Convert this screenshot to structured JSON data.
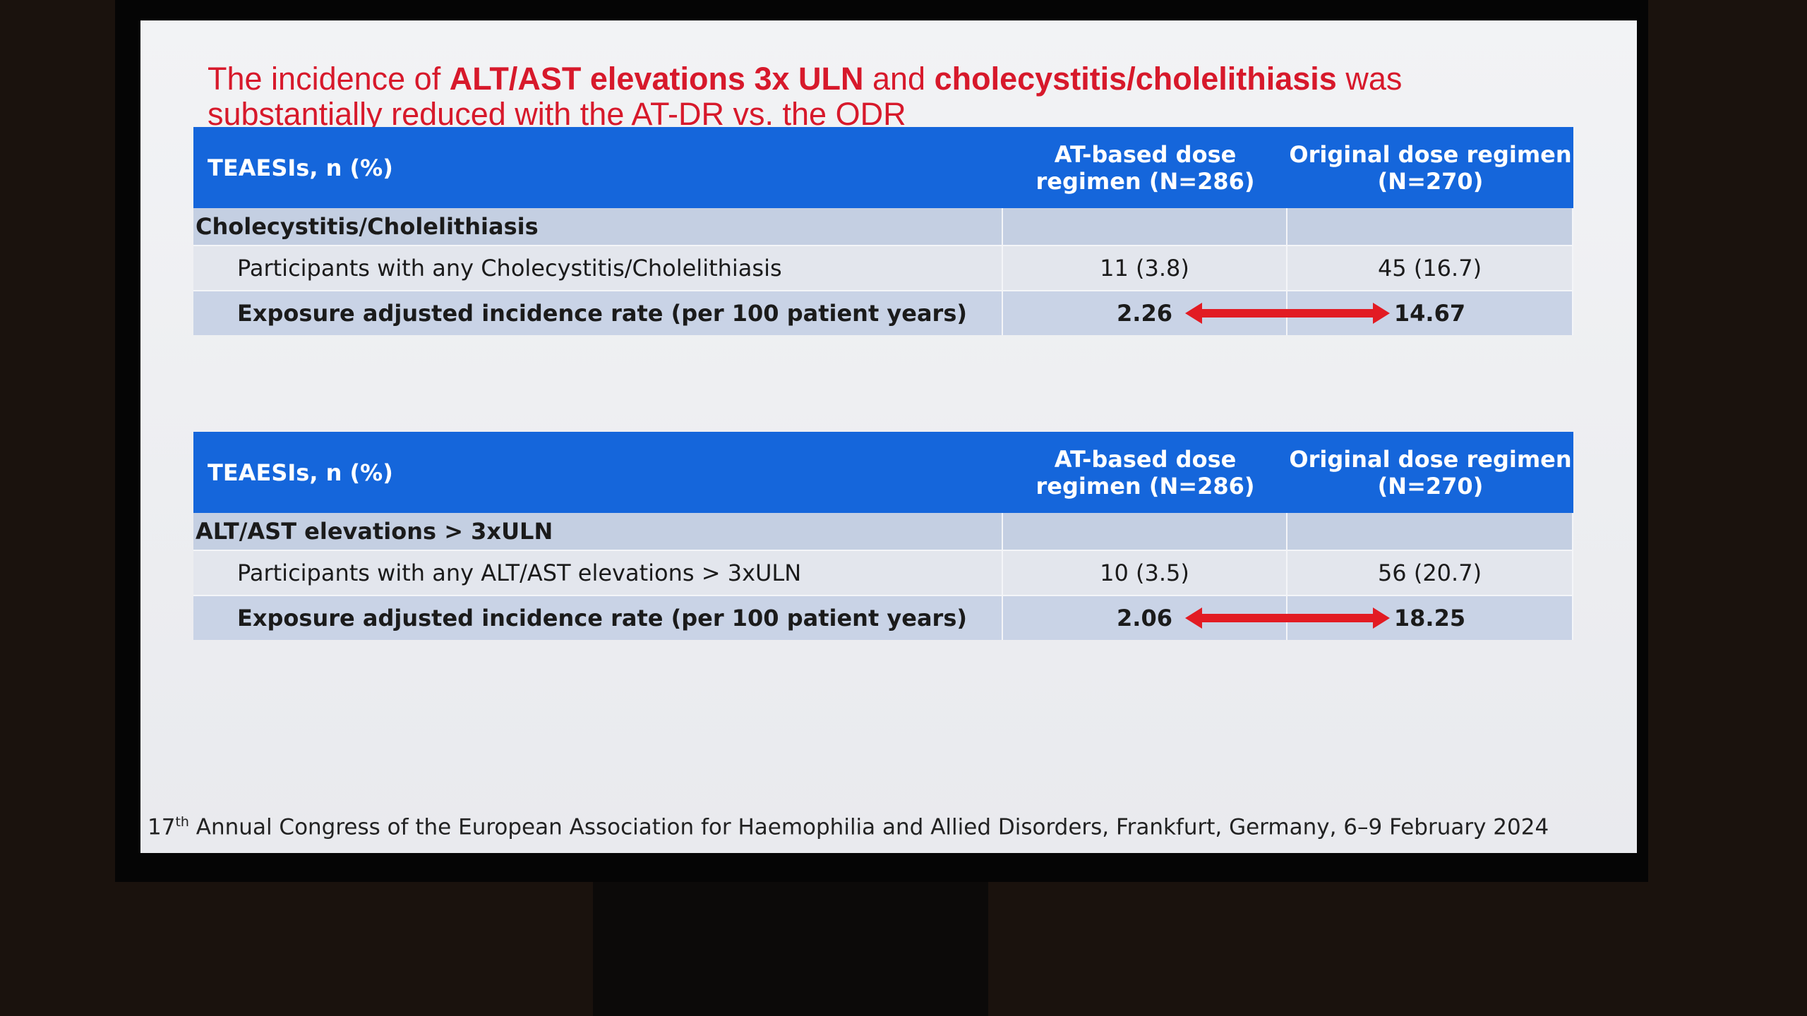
{
  "title": {
    "lines": [
      [
        {
          "text": "The incidence of ",
          "bold": false
        },
        {
          "text": "ALT/AST elevations 3x ULN",
          "bold": true
        },
        {
          "text": " and ",
          "bold": false
        },
        {
          "text": "cholecystitis/cholelithiasis",
          "bold": true
        },
        {
          "text": " was",
          "bold": false
        }
      ],
      [
        {
          "text": "substantially reduced with the AT-DR vs. the ODR",
          "bold": false
        }
      ]
    ]
  },
  "tables": [
    {
      "header": [
        "TEAESIs, n (%)",
        "AT-based dose regimen (N=286)",
        "Original dose regimen (N=270)"
      ],
      "section": "Cholecystitis/Cholelithiasis",
      "rows": [
        {
          "cells": [
            "Participants with any Cholecystitis/Cholelithiasis",
            "11 (3.8)",
            "45 (16.7)"
          ],
          "bold": false
        },
        {
          "cells": [
            "Exposure adjusted incidence rate (per 100 patient years)",
            "2.26",
            "14.67"
          ],
          "bold": true
        }
      ]
    },
    {
      "header": [
        "TEAESIs, n (%)",
        "AT-based dose regimen (N=286)",
        "Original dose regimen (N=270)"
      ],
      "section": "ALT/AST elevations > 3xULN",
      "rows": [
        {
          "cells": [
            "Participants with any ALT/AST elevations > 3xULN",
            "10 (3.5)",
            "56 (20.7)"
          ],
          "bold": false
        },
        {
          "cells": [
            "Exposure adjusted incidence rate (per 100 patient years)",
            "2.06",
            "18.25"
          ],
          "bold": true
        }
      ]
    }
  ],
  "footer": {
    "number": "17",
    "sup": "th",
    "text": " Annual Congress of the European Association for Haemophilia and Allied Disorders, Frankfurt, Germany, 6–9 February 2024"
  }
}
